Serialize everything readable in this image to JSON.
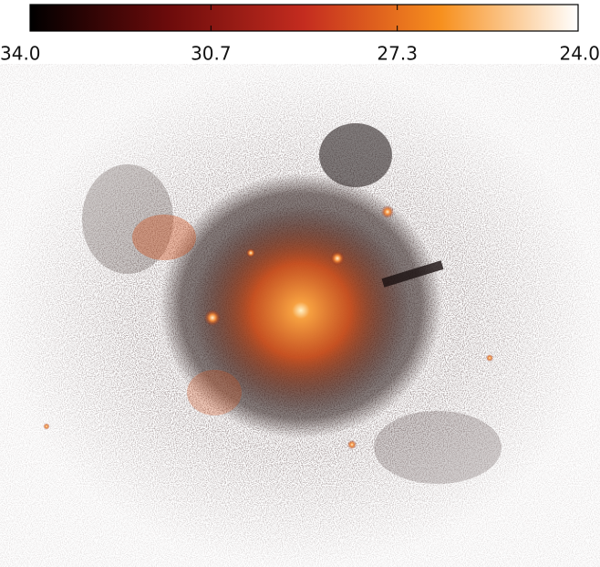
{
  "chart_data": {
    "type": "image",
    "colorbar": {
      "lim": [
        34,
        24
      ],
      "ticks": [
        {
          "value": 34,
          "label": "34.0"
        },
        {
          "value": 30.7,
          "label": "30.7"
        },
        {
          "value": 27.3,
          "label": "27.3"
        },
        {
          "value": 24,
          "label": "24.0"
        }
      ],
      "colors": [
        "#000000",
        "#6b0b0b",
        "#c42c1f",
        "#f7901e",
        "#ffffff"
      ]
    }
  }
}
